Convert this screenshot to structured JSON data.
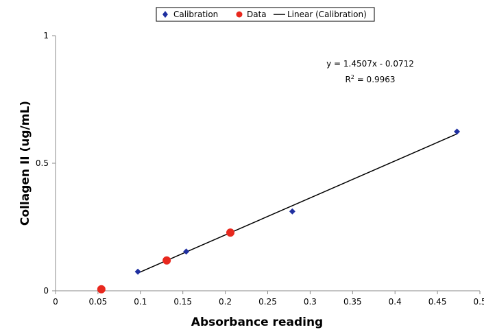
{
  "chart_data": {
    "type": "scatter",
    "xlabel": "Absorbance reading",
    "ylabel": "Collagen II (ug/mL)",
    "xlim": [
      0,
      0.5
    ],
    "ylim": [
      0,
      1
    ],
    "x_ticks": [
      0,
      0.05,
      0.1,
      0.15,
      0.2,
      0.25,
      0.3,
      0.35,
      0.4,
      0.45,
      0.5
    ],
    "x_tick_labels": [
      "0",
      "0.05",
      "0.1",
      "0.15",
      "0.2",
      "0.25",
      "0.3",
      "0.35",
      "0.4",
      "0.45",
      "0.5"
    ],
    "y_ticks": [
      0,
      0.5,
      1
    ],
    "y_tick_labels": [
      "0",
      "0.5",
      "1"
    ],
    "grid": false,
    "legend_position": "top",
    "series": [
      {
        "name": "Calibration",
        "marker": "diamond",
        "color": "#1f2fa0",
        "points": [
          [
            0.097,
            0.075
          ],
          [
            0.154,
            0.154
          ],
          [
            0.279,
            0.311
          ],
          [
            0.473,
            0.624
          ]
        ]
      },
      {
        "name": "Data",
        "marker": "circle",
        "color": "#e8281e",
        "points": [
          [
            0.054,
            0.006
          ],
          [
            0.131,
            0.119
          ],
          [
            0.206,
            0.228
          ]
        ]
      }
    ],
    "trendline": {
      "name": "Linear (Calibration)",
      "color": "#000000",
      "slope": 1.4507,
      "intercept": -0.0712,
      "x_range": [
        0.097,
        0.473
      ]
    },
    "annotations": {
      "equation": "y = 1.4507x - 0.0712",
      "r2_prefix": "R",
      "r2_superscript": "2",
      "r2_value": " = 0.9963"
    }
  }
}
